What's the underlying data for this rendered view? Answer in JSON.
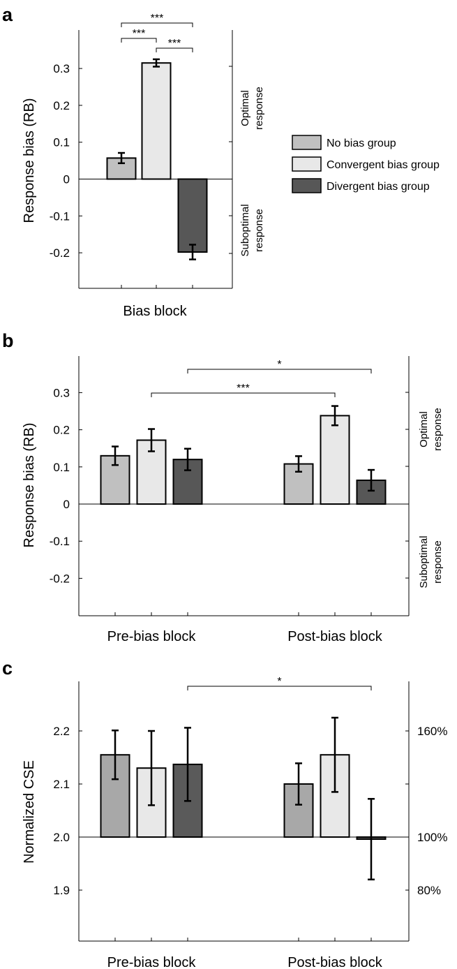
{
  "colors": {
    "no_bias": "#c0c0c0",
    "convergent": "#e8e8e8",
    "divergent": "#575757",
    "divergent_cse": "#5a5a5a",
    "no_bias_cse": "#a8a8a8"
  },
  "legend": [
    "No bias group",
    "Convergent bias group",
    "Divergent bias group"
  ],
  "chart_data": [
    {
      "panel": "a",
      "type": "bar",
      "ylabel": "Response bias (RB)",
      "xlabel": "Bias block",
      "right_labels": {
        "top": [
          "Optimal",
          "response"
        ],
        "bottom": [
          "Suboptimal",
          "response"
        ]
      },
      "yticks": [
        "0.3",
        "0.2",
        "0.1",
        "0",
        "-0.1",
        "-0.2"
      ],
      "ylim": [
        -0.3,
        0.4
      ],
      "categories": [
        "Bias block"
      ],
      "series": [
        {
          "name": "No bias group",
          "values": [
            0.057
          ],
          "errors": [
            0.014
          ]
        },
        {
          "name": "Convergent bias group",
          "values": [
            0.315
          ],
          "errors": [
            0.01
          ]
        },
        {
          "name": "Divergent bias group",
          "values": [
            -0.198
          ],
          "errors": [
            0.02
          ]
        }
      ],
      "significance": [
        "***",
        "***",
        "***"
      ]
    },
    {
      "panel": "b",
      "type": "bar",
      "ylabel": "Response bias (RB)",
      "yticks": [
        "0.3",
        "0.2",
        "0.1",
        "0",
        "-0.1",
        "-0.2"
      ],
      "ylim": [
        -0.3,
        0.4
      ],
      "categories": [
        "Pre-bias block",
        "Post-bias block"
      ],
      "right_labels": {
        "top": [
          "Optimal",
          "response"
        ],
        "bottom": [
          "Suboptimal",
          "response"
        ]
      },
      "series": [
        {
          "name": "No bias group",
          "values": [
            0.13,
            0.108
          ],
          "errors": [
            0.025,
            0.021
          ]
        },
        {
          "name": "Convergent bias group",
          "values": [
            0.172,
            0.238
          ],
          "errors": [
            0.03,
            0.026
          ]
        },
        {
          "name": "Divergent bias group",
          "values": [
            0.12,
            0.064
          ],
          "errors": [
            0.029,
            0.028
          ]
        }
      ],
      "significance": [
        "*",
        "***"
      ]
    },
    {
      "panel": "c",
      "type": "bar",
      "ylabel": "Normalized CSE",
      "yticks": [
        "2.2",
        "2.1",
        "2.0",
        "1.9"
      ],
      "right_ticks": [
        "160%",
        "100%",
        "80%"
      ],
      "ylim": [
        1.805,
        2.27
      ],
      "categories": [
        "Pre-bias block",
        "Post-bias block"
      ],
      "series": [
        {
          "name": "No bias group",
          "values": [
            2.155,
            2.1
          ],
          "errors": [
            0.046,
            0.039
          ]
        },
        {
          "name": "Convergent bias group",
          "values": [
            2.13,
            2.155
          ],
          "errors": [
            0.07,
            0.07
          ]
        },
        {
          "name": "Divergent bias group",
          "values": [
            2.137,
            1.996
          ],
          "errors": [
            0.069,
            0.076
          ]
        }
      ],
      "significance": [
        "*"
      ]
    }
  ]
}
